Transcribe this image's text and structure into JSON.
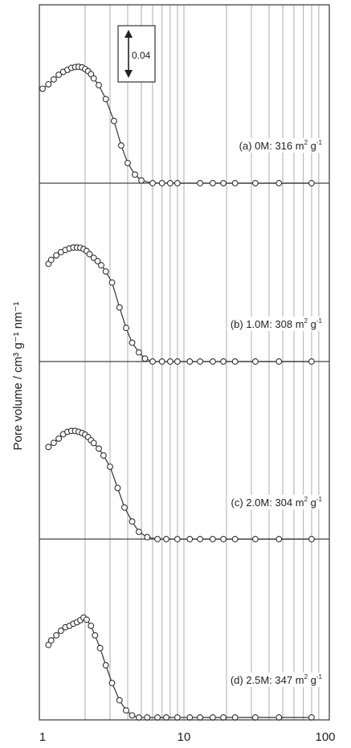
{
  "chart_data": {
    "type": "scatter",
    "x_scale": "log",
    "xlim": [
      1,
      100
    ],
    "x_tick_labels": [
      "1",
      "10",
      "100"
    ],
    "ylabel": "Pore volume / cm³ g⁻¹ nm⁻¹",
    "scale_bar_label": "0.04",
    "grid": true,
    "series": [
      {
        "name": "(a) 0M: 316 m² g⁻¹",
        "label_parts": [
          "(a) 0M: 316 m",
          "2",
          " g",
          "-1"
        ],
        "x": [
          1.0,
          1.1,
          1.2,
          1.3,
          1.4,
          1.5,
          1.6,
          1.7,
          1.8,
          1.9,
          2.0,
          2.1,
          2.2,
          2.3,
          2.5,
          2.8,
          3.2,
          3.6,
          4.0,
          4.5,
          5.0,
          6.0,
          7.0,
          8.0,
          9.0,
          13.0,
          16.0,
          19.0,
          23.0,
          32.0,
          47.0,
          80.0
        ],
        "y": [
          0.0825,
          0.0864,
          0.0907,
          0.0947,
          0.0972,
          0.099,
          0.1007,
          0.1015,
          0.1017,
          0.1012,
          0.0997,
          0.0978,
          0.0952,
          0.0915,
          0.0856,
          0.0735,
          0.0543,
          0.0329,
          0.0176,
          0.0075,
          0.0024,
          0.0,
          0.0,
          0.0,
          0.0,
          0.0,
          0.0,
          0.0,
          0.0,
          0.0,
          0.0,
          0.0
        ]
      },
      {
        "name": "(b) 1.0M: 308 m² g⁻¹",
        "label_parts": [
          "(b) 1.0M: 308 m",
          "2",
          " g",
          "-1"
        ],
        "x": [
          1.1,
          1.15,
          1.25,
          1.35,
          1.45,
          1.55,
          1.65,
          1.75,
          1.85,
          1.95,
          2.05,
          2.15,
          2.3,
          2.45,
          2.6,
          2.8,
          3.1,
          3.5,
          3.9,
          4.3,
          4.8,
          5.3,
          6.0,
          7.0,
          8.0,
          9.0,
          11.0,
          13.0,
          16.0,
          19.0,
          23.0,
          32.0,
          47.0,
          80.0
        ],
        "y": [
          0.0854,
          0.0888,
          0.0927,
          0.0956,
          0.0974,
          0.0988,
          0.0996,
          0.0996,
          0.0994,
          0.0982,
          0.0965,
          0.0938,
          0.0906,
          0.0877,
          0.0841,
          0.0787,
          0.069,
          0.0472,
          0.0293,
          0.0164,
          0.008,
          0.0026,
          0.0,
          0.0,
          0.0,
          0.0,
          0.0,
          0.0,
          0.0,
          0.0,
          0.0,
          0.0,
          0.0,
          0.0
        ]
      },
      {
        "name": "(c) 2.0M: 304 m² g⁻¹",
        "label_parts": [
          "(c) 2.0M: 304 m",
          "2",
          " g",
          "-1"
        ],
        "x": [
          1.1,
          1.2,
          1.3,
          1.4,
          1.5,
          1.6,
          1.7,
          1.8,
          1.9,
          2.0,
          2.1,
          2.2,
          2.3,
          2.5,
          2.7,
          3.0,
          3.4,
          3.8,
          4.3,
          4.8,
          5.5,
          6.5,
          7.5,
          9.0,
          11.0,
          13.0,
          16.0,
          19.0,
          23.0,
          32.0,
          47.0,
          80.0
        ],
        "y": [
          0.0805,
          0.0841,
          0.0878,
          0.0916,
          0.0937,
          0.0945,
          0.0945,
          0.0937,
          0.0926,
          0.0912,
          0.0891,
          0.0864,
          0.0839,
          0.0791,
          0.073,
          0.0632,
          0.0446,
          0.0276,
          0.0154,
          0.0064,
          0.0017,
          0.0,
          0.0,
          0.0,
          0.0,
          0.0,
          0.0,
          0.0,
          0.0,
          0.0,
          0.0,
          0.0
        ]
      },
      {
        "name": "(d) 2.5M: 347 m² g⁻¹",
        "label_parts": [
          "(d) 2.5M: 347 m",
          "2",
          " g",
          "-1"
        ],
        "x": [
          1.1,
          1.15,
          1.25,
          1.35,
          1.45,
          1.55,
          1.65,
          1.75,
          1.85,
          1.95,
          2.05,
          2.2,
          2.35,
          2.55,
          2.8,
          3.1,
          3.5,
          3.9,
          4.3,
          4.8,
          5.5,
          6.5,
          7.5,
          9.0,
          11.0,
          13.0,
          16.0,
          19.0,
          23.0,
          32.0,
          47.0,
          80.0
        ],
        "y": [
          0.0634,
          0.0673,
          0.0717,
          0.0757,
          0.0788,
          0.0801,
          0.0819,
          0.0832,
          0.085,
          0.0872,
          0.0854,
          0.0801,
          0.0717,
          0.0606,
          0.0456,
          0.0301,
          0.015,
          0.0062,
          0.0018,
          0.0,
          0.0,
          0.0,
          0.0,
          0.0,
          0.0,
          0.0,
          0.0,
          0.0,
          0.0,
          0.0,
          0.0,
          0.0
        ]
      }
    ]
  }
}
